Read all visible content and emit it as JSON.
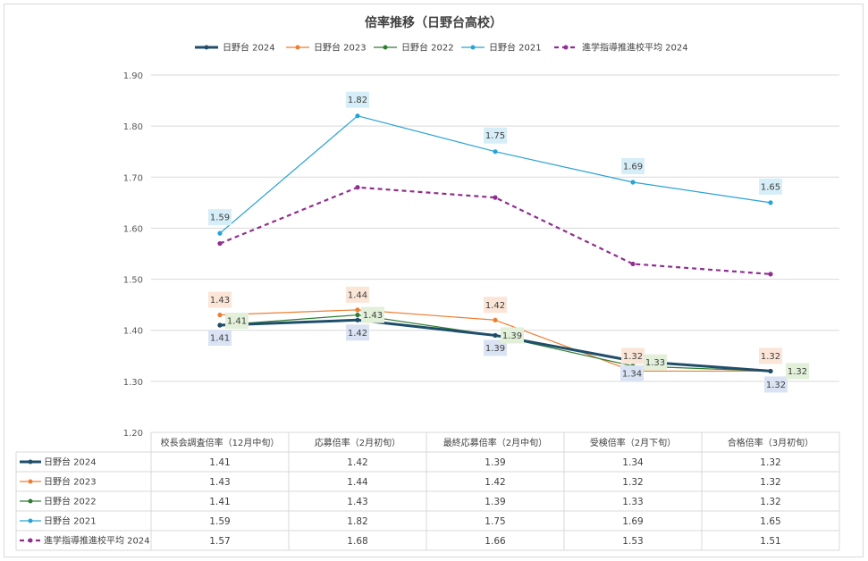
{
  "chart_data": {
    "type": "line",
    "title": "倍率推移（日野台高校）",
    "categories": [
      "校長会調査倍率（12月中旬）",
      "応募倍率（2月初旬）",
      "最終応募倍率（2月中旬）",
      "受検倍率（2月下旬）",
      "合格倍率（3月初旬）"
    ],
    "ylim": [
      1.2,
      1.9
    ],
    "yticks": [
      "1.20",
      "1.30",
      "1.40",
      "1.50",
      "1.60",
      "1.70",
      "1.80",
      "1.90"
    ],
    "grid": true,
    "legend_position": "top",
    "series": [
      {
        "name": "日野台 2024",
        "values": [
          1.41,
          1.42,
          1.39,
          1.34,
          1.32
        ],
        "labels": [
          "1.41",
          "1.42",
          "1.39",
          "1.34",
          "1.32"
        ],
        "color": "#1f4e6b",
        "label_bg": "#dae3f3"
      },
      {
        "name": "日野台 2023",
        "values": [
          1.43,
          1.44,
          1.42,
          1.32,
          1.32
        ],
        "labels": [
          "1.43",
          "1.44",
          "1.42",
          "1.32",
          "1.32"
        ],
        "color": "#ed7d31",
        "label_bg": "#fbe5d6"
      },
      {
        "name": "日野台 2022",
        "values": [
          1.41,
          1.43,
          1.39,
          1.33,
          1.32
        ],
        "labels": [
          "1.41",
          "1.43",
          "1.39",
          "1.33",
          "1.32"
        ],
        "color": "#2e7d32",
        "label_bg": "#e2f0d9"
      },
      {
        "name": "日野台 2021",
        "values": [
          1.59,
          1.82,
          1.75,
          1.69,
          1.65
        ],
        "labels": [
          "1.59",
          "1.82",
          "1.75",
          "1.69",
          "1.65"
        ],
        "color": "#29a3d4",
        "label_bg": "#d6eef8"
      },
      {
        "name": "進学指導推進校平均 2024",
        "values": [
          1.57,
          1.68,
          1.66,
          1.53,
          1.51
        ],
        "labels": [
          "1.57",
          "1.68",
          "1.66",
          "1.53",
          "1.51"
        ],
        "color": "#8e2f8f",
        "label_bg": ""
      }
    ]
  }
}
